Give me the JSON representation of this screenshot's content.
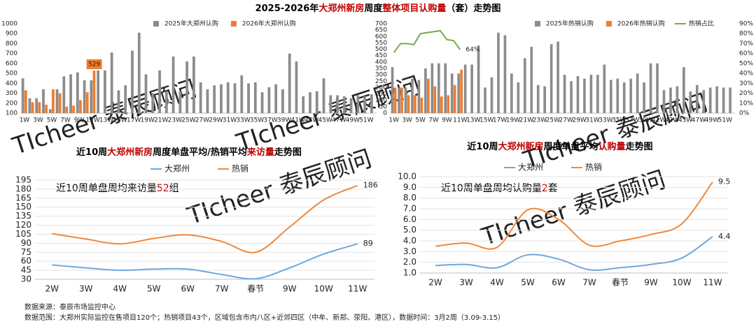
{
  "title": [
    {
      "text": "2025-2026年",
      "color": "#000000"
    },
    {
      "text": "大郑州新房",
      "color": "#c00000"
    },
    {
      "text": "周度",
      "color": "#000000"
    },
    {
      "text": "整体项目认购量",
      "color": "#c00000"
    },
    {
      "text": "（套）走势图",
      "color": "#000000"
    }
  ],
  "watermark": "TIcheer 泰辰顾问",
  "chart_data": [
    {
      "type": "bar",
      "categories": [
        "1W",
        null,
        "3W",
        null,
        "5W",
        null,
        "7W",
        null,
        "9W",
        null,
        "11W",
        null,
        "13W",
        null,
        "15W",
        null,
        "17W",
        null,
        "19W",
        null,
        "21W",
        null,
        "23W",
        null,
        "25W",
        null,
        "27W",
        null,
        "29W",
        null,
        "31W",
        null,
        "33W",
        null,
        "35W",
        null,
        "37W",
        null,
        "39W",
        null,
        "41W",
        null,
        "43W",
        null,
        "45W",
        null,
        "47W",
        null,
        "49W",
        null,
        "51W",
        null
      ],
      "series": [
        {
          "name": "2025年大郑州认购",
          "color": "#8c8c8c",
          "values": [
            450,
            250,
            250,
            340,
            140,
            340,
            470,
            490,
            510,
            430,
            430,
            530,
            530,
            710,
            330,
            380,
            730,
            910,
            490,
            300,
            530,
            320,
            670,
            320,
            620,
            670,
            410,
            340,
            380,
            390,
            410,
            400,
            480,
            400,
            410,
            310,
            360,
            390,
            340,
            700,
            620,
            270,
            310,
            320,
            450,
            280,
            280,
            270,
            250,
            280,
            270,
            290
          ]
        },
        {
          "name": "2026年大郑州认购",
          "color": "#ed7d31",
          "label_box_color": "#ed7d31",
          "values": [
            330,
            210,
            210,
            185,
            340,
            300,
            165,
            175,
            230,
            310,
            529,
            null,
            null,
            null,
            null,
            null,
            null,
            null,
            null,
            null,
            null,
            null,
            null,
            null,
            null,
            null,
            null,
            null,
            null,
            null,
            null,
            null,
            null,
            null,
            null,
            null,
            null,
            null,
            null,
            null,
            null,
            null,
            null,
            null,
            null,
            null,
            null,
            null,
            null,
            null,
            null,
            null
          ],
          "value_labels": [
            null,
            null,
            null,
            null,
            null,
            null,
            null,
            null,
            null,
            null,
            "529",
            null,
            null,
            null,
            null,
            null,
            null,
            null,
            null,
            null,
            null,
            null,
            null,
            null,
            null,
            null,
            null,
            null,
            null,
            null,
            null,
            null,
            null,
            null,
            null,
            null,
            null,
            null,
            null,
            null,
            null,
            null,
            null,
            null,
            null,
            null,
            null,
            null,
            null,
            null,
            null,
            null
          ]
        }
      ],
      "ylim": [
        100,
        1000
      ],
      "yticks": [
        100,
        200,
        300,
        400,
        500,
        600,
        700,
        800,
        900,
        1000
      ],
      "grid": false
    },
    {
      "type": "bar",
      "categories": [
        "1W",
        null,
        "3W",
        null,
        "5W",
        null,
        "7W",
        null,
        "9W",
        null,
        "11W",
        null,
        "13W",
        null,
        "15W",
        null,
        "17W",
        null,
        "19W",
        null,
        "21W",
        null,
        "23W",
        null,
        "25W",
        null,
        "27W",
        null,
        "29W",
        null,
        "31W",
        null,
        "33W",
        null,
        "35W",
        null,
        "37W",
        null,
        "39W",
        null,
        "41W",
        null,
        "43W",
        null,
        "45W",
        null,
        "47W",
        null,
        "49W",
        null,
        "51W",
        null
      ],
      "series": [
        {
          "name": "2025年热销认购",
          "color": "#8c8c8c",
          "values": [
            360,
            200,
            200,
            270,
            260,
            350,
            390,
            390,
            390,
            310,
            310,
            380,
            380,
            530,
            200,
            280,
            630,
            610,
            310,
            240,
            430,
            520,
            220,
            210,
            540,
            560,
            300,
            250,
            290,
            270,
            300,
            300,
            380,
            260,
            270,
            240,
            270,
            310,
            240,
            390,
            390,
            180,
            200,
            210,
            360,
            170,
            220,
            180,
            200,
            210,
            200,
            200
          ]
        },
        {
          "name": "2026年热销认购",
          "color": "#ed7d31",
          "values": [
            200,
            200,
            140,
            140,
            120,
            270,
            210,
            130,
            140,
            220,
            340,
            null,
            null,
            null,
            null,
            null,
            null,
            null,
            null,
            null,
            null,
            null,
            null,
            null,
            null,
            null,
            null,
            null,
            null,
            null,
            null,
            null,
            null,
            null,
            null,
            null,
            null,
            null,
            null,
            null,
            null,
            null,
            null,
            null,
            null,
            null,
            null,
            null,
            null,
            null,
            null,
            null
          ]
        },
        {
          "name": "热销占比",
          "type": "line",
          "axis": "y2",
          "color": "#70ad47",
          "values": [
            61,
            70,
            70,
            69,
            80,
            81,
            82,
            83,
            74,
            73,
            64,
            null,
            null,
            null,
            null,
            null,
            null,
            null,
            null,
            null,
            null,
            null,
            null,
            null,
            null,
            null,
            null,
            null,
            null,
            null,
            null,
            null,
            null,
            null,
            null,
            null,
            null,
            null,
            null,
            null,
            null,
            null,
            null,
            null,
            null,
            null,
            null,
            null,
            null,
            null,
            null,
            null
          ],
          "value_labels": [
            null,
            null,
            null,
            null,
            null,
            null,
            null,
            null,
            null,
            null,
            "64%",
            null,
            null,
            null,
            null,
            null,
            null,
            null,
            null,
            null,
            null,
            null,
            null,
            null,
            null,
            null,
            null,
            null,
            null,
            null,
            null,
            null,
            null,
            null,
            null,
            null,
            null,
            null,
            null,
            null,
            null,
            null,
            null,
            null,
            null,
            null,
            null,
            null,
            null,
            null,
            null,
            null
          ]
        }
      ],
      "ylim": [
        0,
        700
      ],
      "yticks": [
        0,
        50,
        100,
        150,
        200,
        250,
        300,
        350,
        400,
        450,
        500,
        550,
        600,
        650,
        700
      ],
      "y2lim": [
        0,
        90
      ],
      "y2ticks": [
        {
          "value": 0,
          "label": "0%"
        },
        {
          "value": 10,
          "label": "10%"
        },
        {
          "value": 20,
          "label": "20%"
        },
        {
          "value": 30,
          "label": "30%"
        },
        {
          "value": 40,
          "label": "40%"
        },
        {
          "value": 50,
          "label": "50%"
        },
        {
          "value": 60,
          "label": "60%"
        },
        {
          "value": 70,
          "label": "70%"
        },
        {
          "value": 80,
          "label": "80%"
        },
        {
          "value": 90,
          "label": "90%"
        }
      ],
      "grid": false
    },
    {
      "type": "line",
      "title": [
        {
          "text": "近10周",
          "color": "#000000"
        },
        {
          "text": "大郑州新房",
          "color": "#c00000"
        },
        {
          "text": "周度单盘平均/热销平均",
          "color": "#000000"
        },
        {
          "text": "来访量",
          "color": "#c00000"
        },
        {
          "text": "走势图",
          "color": "#000000"
        }
      ],
      "annotation": [
        {
          "text": "近10周单盘周均来访量",
          "color": "#000000"
        },
        {
          "text": "52",
          "color": "#c00000"
        },
        {
          "text": "组",
          "color": "#000000"
        }
      ],
      "categories": [
        "2W",
        "3W",
        "4W",
        "5W",
        "6W",
        "7W",
        "春节",
        "9W",
        "10W",
        "11W"
      ],
      "series": [
        {
          "name": "大郑州",
          "color": "#6fa8dc",
          "values": [
            54,
            49,
            45,
            47,
            47,
            38,
            31,
            49,
            72,
            89
          ],
          "value_labels": [
            null,
            null,
            null,
            null,
            null,
            null,
            null,
            null,
            null,
            "89"
          ]
        },
        {
          "name": "热销",
          "color": "#f0883a",
          "values": [
            106,
            97,
            89,
            98,
            104,
            93,
            75,
            117,
            162,
            186
          ],
          "value_labels": [
            null,
            null,
            null,
            null,
            null,
            null,
            null,
            null,
            null,
            "186"
          ]
        }
      ],
      "ylim": [
        30,
        195
      ],
      "yticks": [
        30,
        45,
        60,
        75,
        90,
        105,
        120,
        135,
        150,
        165,
        180,
        195
      ],
      "grid": true
    },
    {
      "type": "line",
      "title": [
        {
          "text": "近10周",
          "color": "#000000"
        },
        {
          "text": "大郑州新房",
          "color": "#c00000"
        },
        {
          "text": "周度单盘平均",
          "color": "#000000"
        },
        {
          "text": "认购量",
          "color": "#c00000"
        },
        {
          "text": "走势图",
          "color": "#000000"
        }
      ],
      "annotation": [
        {
          "text": "近10周单盘周均认购量",
          "color": "#000000"
        },
        {
          "text": "2",
          "color": "#c00000"
        },
        {
          "text": "套",
          "color": "#000000"
        }
      ],
      "categories": [
        "2W",
        "3W",
        "4W",
        "5W",
        "6W",
        "7W",
        "春节",
        "9W",
        "10W",
        "11W"
      ],
      "series": [
        {
          "name": "大郑州",
          "color": "#6fa8dc",
          "values": [
            1.7,
            1.8,
            1.5,
            2.7,
            2.3,
            1.3,
            1.5,
            1.8,
            2.4,
            4.4
          ],
          "value_labels": [
            null,
            null,
            null,
            null,
            null,
            null,
            null,
            null,
            null,
            "4.4"
          ]
        },
        {
          "name": "热销",
          "color": "#f0883a",
          "values": [
            3.5,
            3.8,
            3.4,
            6.9,
            6.0,
            3.6,
            4.0,
            4.6,
            5.6,
            9.5
          ],
          "value_labels": [
            null,
            null,
            null,
            null,
            null,
            null,
            null,
            null,
            null,
            "9.5"
          ]
        }
      ],
      "ylim": [
        1,
        10
      ],
      "yticks": [
        {
          "value": 1,
          "label": "1.0"
        },
        {
          "value": 2,
          "label": "2.0"
        },
        {
          "value": 3,
          "label": "3.0"
        },
        {
          "value": 4,
          "label": "4.0"
        },
        {
          "value": 5,
          "label": "5.0"
        },
        {
          "value": 6,
          "label": "6.0"
        },
        {
          "value": 7,
          "label": "7.0"
        },
        {
          "value": 8,
          "label": "8.0"
        },
        {
          "value": 9,
          "label": "9.0"
        },
        {
          "value": 10,
          "label": "10.0"
        }
      ],
      "grid": true
    }
  ],
  "footer": [
    "数据来源：泰辰市场监控中心",
    "数据范围：大郑州实际监控在售项目120个；热销项目43个，区域包含市内八区+近郊四区（中牟、新郑、荥阳、港区），数据时间：3月2周（3.09-3.15）"
  ]
}
